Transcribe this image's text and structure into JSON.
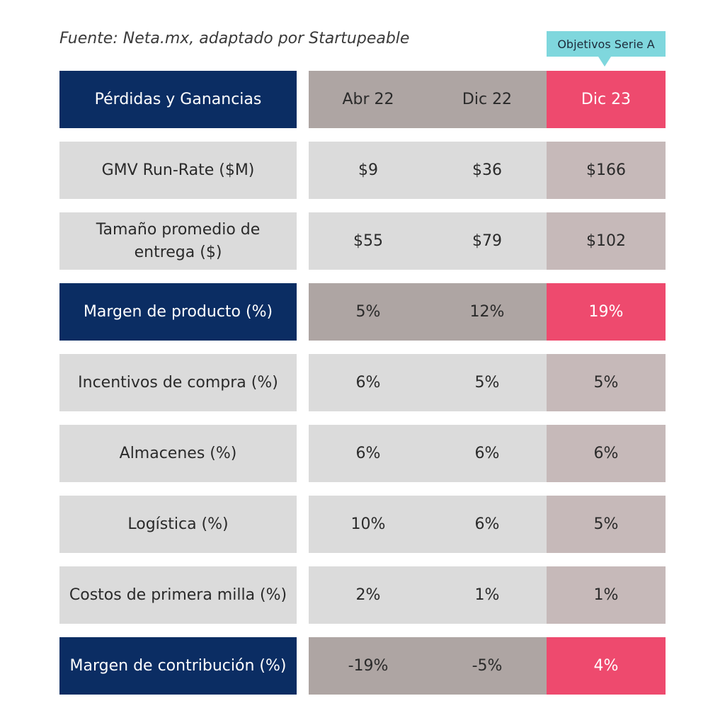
{
  "source": "Fuente: Neta.mx, adaptado por Startupeable",
  "callout": "Objetivos Serie A",
  "chart_data": {
    "type": "table",
    "title": "",
    "columns": [
      "Pérdidas y Ganancias",
      "Abr 22",
      "Dic 22",
      "Dic 23"
    ],
    "rows": [
      {
        "label": "GMV Run-Rate ($M)",
        "values": [
          "$9",
          "$36",
          "$166"
        ],
        "style": "normal"
      },
      {
        "label": "Tamaño promedio de entrega ($)",
        "values": [
          "$55",
          "$79",
          "$102"
        ],
        "style": "normal"
      },
      {
        "label": "Margen de producto (%)",
        "values": [
          "5%",
          "12%",
          "19%"
        ],
        "style": "highlight"
      },
      {
        "label": "Incentivos de compra (%)",
        "values": [
          "6%",
          "5%",
          "5%"
        ],
        "style": "normal"
      },
      {
        "label": "Almacenes (%)",
        "values": [
          "6%",
          "6%",
          "6%"
        ],
        "style": "normal"
      },
      {
        "label": "Logística (%)",
        "values": [
          "10%",
          "6%",
          "5%"
        ],
        "style": "normal"
      },
      {
        "label": "Costos de primera milla (%)",
        "values": [
          "2%",
          "1%",
          "1%"
        ],
        "style": "normal"
      },
      {
        "label": "Margen de contribución (%)",
        "values": [
          "-19%",
          "-5%",
          "4%"
        ],
        "style": "highlight"
      }
    ],
    "colors": {
      "navy": "#0b2d63",
      "taupe": "#aea5a3",
      "pink": "#ee4a6e",
      "light_gray": "#dbdbdb",
      "mauve_gray": "#c6b9b9",
      "callout_teal": "#7fd7dd"
    }
  }
}
